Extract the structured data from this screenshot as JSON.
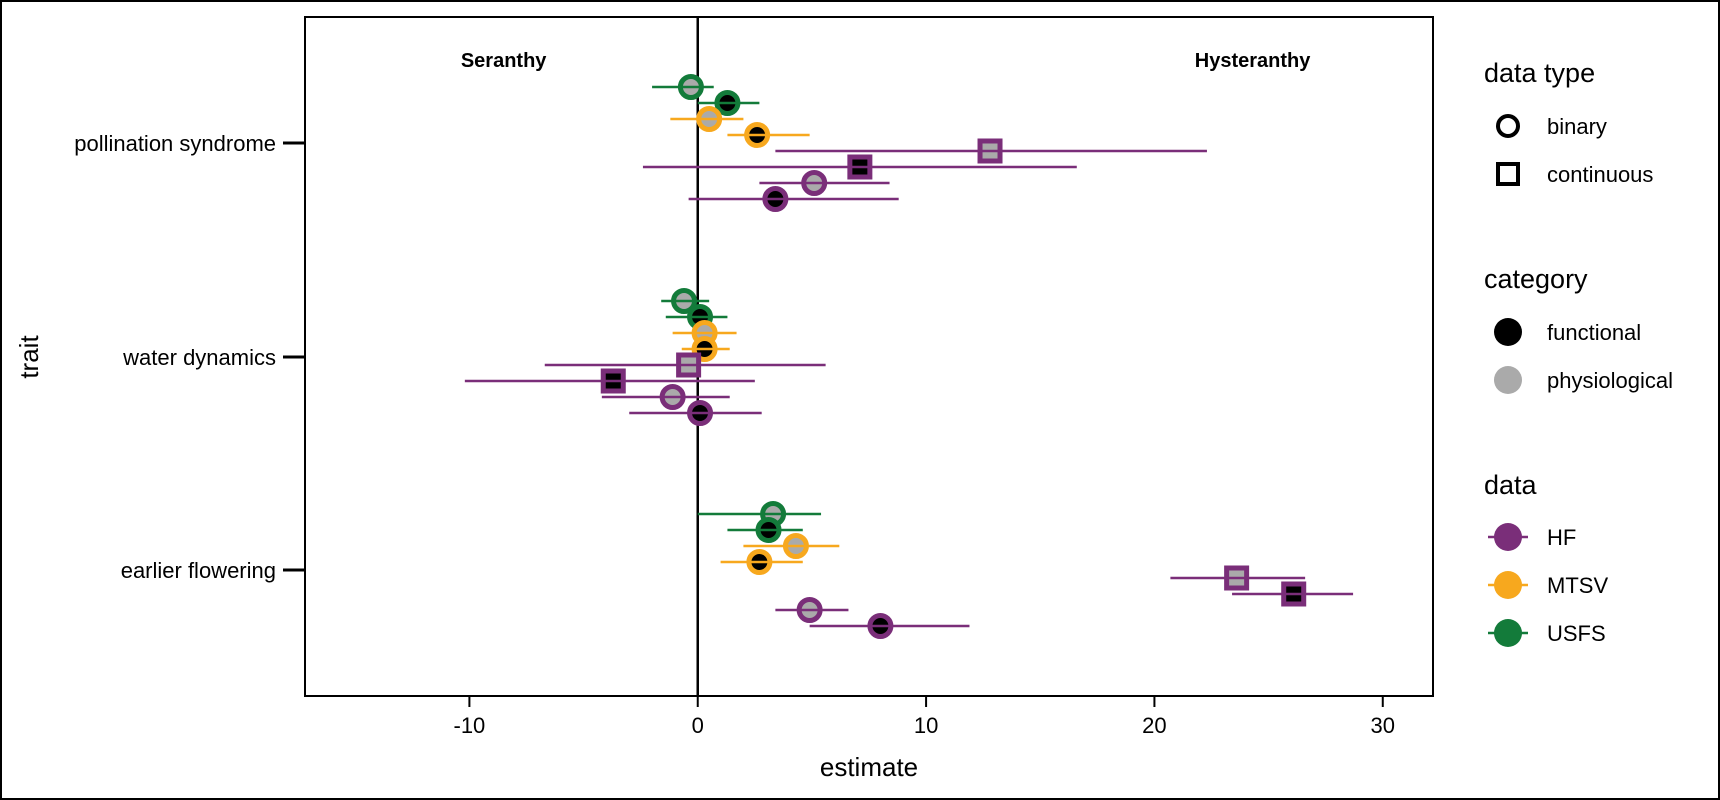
{
  "chart_data": {
    "type": "scatter",
    "title": "",
    "xlabel": "estimate",
    "ylabel": "trait",
    "xlim": [
      -17.2,
      32.2
    ],
    "xticks": [
      -10,
      0,
      10,
      20,
      30
    ],
    "xtick_labels": [
      "-10",
      "0",
      "10",
      "20",
      "30"
    ],
    "categories": [
      "pollination syndrome",
      "water dynamics",
      "earlier flowering"
    ],
    "vline_x": 0,
    "grid": false,
    "annotations": [
      {
        "text": "Seranthy",
        "x": -8.5
      },
      {
        "text": "Hysteranthy",
        "x": 24.3
      }
    ],
    "colors": {
      "HF": "#7a2e79",
      "MTSV": "#f7a81e",
      "USFS": "#137b3a",
      "functional": "#000000",
      "physiological": "#aaaaaa"
    },
    "points": [
      {
        "trait": "pollination syndrome",
        "data": "USFS",
        "category": "physiological",
        "type": "binary",
        "estimate": -0.3,
        "lo": -2.0,
        "hi": 0.7
      },
      {
        "trait": "pollination syndrome",
        "data": "USFS",
        "category": "functional",
        "type": "binary",
        "estimate": 1.3,
        "lo": 0.0,
        "hi": 2.7
      },
      {
        "trait": "pollination syndrome",
        "data": "MTSV",
        "category": "physiological",
        "type": "binary",
        "estimate": 0.5,
        "lo": -1.2,
        "hi": 2.0
      },
      {
        "trait": "pollination syndrome",
        "data": "MTSV",
        "category": "functional",
        "type": "binary",
        "estimate": 2.6,
        "lo": 1.3,
        "hi": 4.9
      },
      {
        "trait": "pollination syndrome",
        "data": "HF",
        "category": "physiological",
        "type": "continuous",
        "estimate": 12.8,
        "lo": 3.4,
        "hi": 22.3
      },
      {
        "trait": "pollination syndrome",
        "data": "HF",
        "category": "functional",
        "type": "continuous",
        "estimate": 7.1,
        "lo": -2.4,
        "hi": 16.6
      },
      {
        "trait": "pollination syndrome",
        "data": "HF",
        "category": "physiological",
        "type": "binary",
        "estimate": 5.1,
        "lo": 2.7,
        "hi": 8.4
      },
      {
        "trait": "pollination syndrome",
        "data": "HF",
        "category": "functional",
        "type": "binary",
        "estimate": 3.4,
        "lo": -0.4,
        "hi": 8.8
      },
      {
        "trait": "water dynamics",
        "data": "USFS",
        "category": "physiological",
        "type": "binary",
        "estimate": -0.6,
        "lo": -1.6,
        "hi": 0.5
      },
      {
        "trait": "water dynamics",
        "data": "USFS",
        "category": "functional",
        "type": "binary",
        "estimate": 0.1,
        "lo": -1.4,
        "hi": 1.3
      },
      {
        "trait": "water dynamics",
        "data": "MTSV",
        "category": "physiological",
        "type": "binary",
        "estimate": 0.3,
        "lo": -1.1,
        "hi": 1.7
      },
      {
        "trait": "water dynamics",
        "data": "MTSV",
        "category": "functional",
        "type": "binary",
        "estimate": 0.3,
        "lo": -0.7,
        "hi": 1.4
      },
      {
        "trait": "water dynamics",
        "data": "HF",
        "category": "physiological",
        "type": "continuous",
        "estimate": -0.4,
        "lo": -6.7,
        "hi": 5.6
      },
      {
        "trait": "water dynamics",
        "data": "HF",
        "category": "functional",
        "type": "continuous",
        "estimate": -3.7,
        "lo": -10.2,
        "hi": 2.5
      },
      {
        "trait": "water dynamics",
        "data": "HF",
        "category": "physiological",
        "type": "binary",
        "estimate": -1.1,
        "lo": -4.2,
        "hi": 1.4
      },
      {
        "trait": "water dynamics",
        "data": "HF",
        "category": "functional",
        "type": "binary",
        "estimate": 0.1,
        "lo": -3.0,
        "hi": 2.8
      },
      {
        "trait": "earlier flowering",
        "data": "USFS",
        "category": "physiological",
        "type": "binary",
        "estimate": 3.3,
        "lo": 0.0,
        "hi": 5.4
      },
      {
        "trait": "earlier flowering",
        "data": "USFS",
        "category": "functional",
        "type": "binary",
        "estimate": 3.1,
        "lo": 1.3,
        "hi": 4.6
      },
      {
        "trait": "earlier flowering",
        "data": "MTSV",
        "category": "physiological",
        "type": "binary",
        "estimate": 4.3,
        "lo": 2.0,
        "hi": 6.2
      },
      {
        "trait": "earlier flowering",
        "data": "MTSV",
        "category": "functional",
        "type": "binary",
        "estimate": 2.7,
        "lo": 1.0,
        "hi": 4.6
      },
      {
        "trait": "earlier flowering",
        "data": "HF",
        "category": "physiological",
        "type": "continuous",
        "estimate": 23.6,
        "lo": 20.7,
        "hi": 26.6
      },
      {
        "trait": "earlier flowering",
        "data": "HF",
        "category": "functional",
        "type": "continuous",
        "estimate": 26.1,
        "lo": 23.4,
        "hi": 28.7
      },
      {
        "trait": "earlier flowering",
        "data": "HF",
        "category": "physiological",
        "type": "binary",
        "estimate": 4.9,
        "lo": 3.4,
        "hi": 6.6
      },
      {
        "trait": "earlier flowering",
        "data": "HF",
        "category": "functional",
        "type": "binary",
        "estimate": 8.0,
        "lo": 4.9,
        "hi": 11.9
      }
    ],
    "legend": {
      "placement": "right",
      "groups": [
        {
          "title": "data type",
          "items": [
            {
              "label": "binary",
              "shape": "circle"
            },
            {
              "label": "continuous",
              "shape": "square"
            }
          ]
        },
        {
          "title": "category",
          "items": [
            {
              "label": "functional",
              "fill": "#000000"
            },
            {
              "label": "physiological",
              "fill": "#aaaaaa"
            }
          ]
        },
        {
          "title": "data",
          "items": [
            {
              "label": "HF",
              "color": "#7a2e79"
            },
            {
              "label": "MTSV",
              "color": "#f7a81e"
            },
            {
              "label": "USFS",
              "color": "#137b3a"
            }
          ]
        }
      ]
    }
  }
}
